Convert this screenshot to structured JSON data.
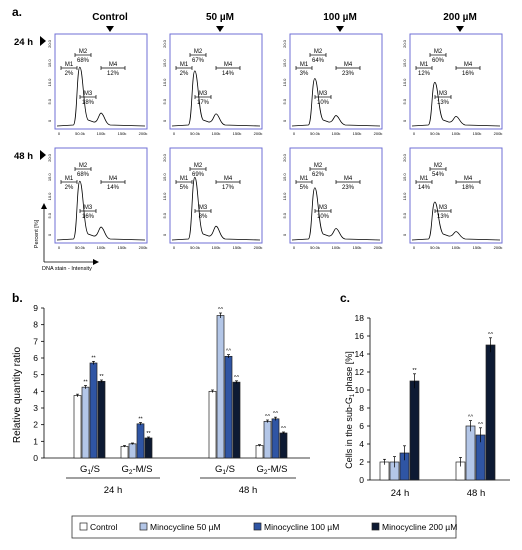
{
  "panel_a": {
    "label": "a.",
    "columns": [
      "Control",
      "50 µM",
      "100 µM",
      "200 µM"
    ],
    "rows": [
      "24 h",
      "48 h"
    ],
    "x_ticks": [
      "0",
      "50.0k",
      "100k",
      "150k",
      "200k"
    ],
    "y_ticks": [
      "0",
      "5.0",
      "10.0",
      "15.0",
      "20.0"
    ],
    "ylabel": "Percent [%]",
    "xlabel": "DNA stain - Intensity",
    "markers": [
      "M1",
      "M2",
      "M3",
      "M4"
    ],
    "histograms": [
      {
        "row": "24 h",
        "column": "Control",
        "M1": "2%",
        "M2": "68%",
        "M3": "18%",
        "M4": "12%"
      },
      {
        "row": "24 h",
        "column": "50 µM",
        "M1": "2%",
        "M2": "67%",
        "M3": "17%",
        "M4": "14%"
      },
      {
        "row": "24 h",
        "column": "100 µM",
        "M1": "3%",
        "M2": "64%",
        "M3": "10%",
        "M4": "23%"
      },
      {
        "row": "24 h",
        "column": "200 µM",
        "M1": "12%",
        "M2": "60%",
        "M3": "13%",
        "M4": "16%"
      },
      {
        "row": "48 h",
        "column": "Control",
        "M1": "2%",
        "M2": "68%",
        "M3": "16%",
        "M4": "14%"
      },
      {
        "row": "48 h",
        "column": "50 µM",
        "M1": "5%",
        "M2": "69%",
        "M3": "8%",
        "M4": "17%"
      },
      {
        "row": "48 h",
        "column": "100 µM",
        "M1": "5%",
        "M2": "62%",
        "M3": "10%",
        "M4": "23%"
      },
      {
        "row": "48 h",
        "column": "200 µM",
        "M1": "14%",
        "M2": "54%",
        "M3": "13%",
        "M4": "18%"
      }
    ]
  },
  "legend": {
    "entries": [
      "Control",
      "Minocycline 50 µM",
      "Minocycline 100 µM",
      "Minocycline 200 µM"
    ],
    "colors": [
      "#ffffff",
      "#b3c6e7",
      "#2f55a4",
      "#0d1a33"
    ]
  },
  "chart_data": [
    {
      "type": "bar",
      "panel": "b.",
      "ylabel": "Relative quantity ratio",
      "ylim": [
        0,
        9
      ],
      "yticks": [
        "0",
        "1",
        "2",
        "3",
        "4",
        "5",
        "6",
        "7",
        "8",
        "9"
      ],
      "groups": [
        "24 h",
        "48 h"
      ],
      "categories": [
        "G1/S",
        "G2-M/S",
        "G1/S",
        "G2-M/S"
      ],
      "category_labels": [
        {
          "main": "G",
          "sub": "1",
          "rest": "/S"
        },
        {
          "main": "G",
          "sub": "2",
          "rest": "-M/S"
        },
        {
          "main": "G",
          "sub": "1",
          "rest": "/S"
        },
        {
          "main": "G",
          "sub": "2",
          "rest": "-M/S"
        }
      ],
      "series": [
        {
          "name": "Control",
          "values": [
            3.75,
            0.7,
            4.0,
            0.75
          ],
          "errors": [
            0.08,
            0.05,
            0.08,
            0.05
          ],
          "marks": [
            "",
            "",
            "",
            ""
          ]
        },
        {
          "name": "Minocycline 50 µM",
          "values": [
            4.25,
            0.85,
            8.55,
            2.2
          ],
          "errors": [
            0.1,
            0.05,
            0.15,
            0.08
          ],
          "marks": [
            "**",
            "",
            "^^",
            "^^"
          ]
        },
        {
          "name": "Minocycline 100 µM",
          "values": [
            5.7,
            2.05,
            6.1,
            2.35
          ],
          "errors": [
            0.1,
            0.08,
            0.1,
            0.1
          ],
          "marks": [
            "**",
            "**",
            "^^",
            "^^"
          ]
        },
        {
          "name": "Minocycline 200 µM",
          "values": [
            4.6,
            1.2,
            4.55,
            1.5
          ],
          "errors": [
            0.08,
            0.06,
            0.08,
            0.06
          ],
          "marks": [
            "**",
            "**",
            "^^",
            "^^"
          ]
        }
      ]
    },
    {
      "type": "bar",
      "panel": "c.",
      "ylabel": "Cells in the sub-G1 phase [%]",
      "ylim": [
        0,
        18
      ],
      "yticks": [
        "0",
        "2",
        "4",
        "6",
        "8",
        "10",
        "12",
        "14",
        "16",
        "18"
      ],
      "categories": [
        "24 h",
        "48 h"
      ],
      "series": [
        {
          "name": "Control",
          "values": [
            2.0,
            2.0
          ],
          "errors": [
            0.3,
            0.5
          ],
          "marks": [
            "",
            ""
          ]
        },
        {
          "name": "Minocycline 50 µM",
          "values": [
            2.0,
            6.0
          ],
          "errors": [
            0.6,
            0.6
          ],
          "marks": [
            "",
            "^^"
          ]
        },
        {
          "name": "Minocycline 100 µM",
          "values": [
            3.0,
            5.0
          ],
          "errors": [
            0.8,
            0.8
          ],
          "marks": [
            "",
            "^^"
          ]
        },
        {
          "name": "Minocycline 200 µM",
          "values": [
            11.0,
            15.0
          ],
          "errors": [
            0.8,
            0.8
          ],
          "marks": [
            "**",
            "^^"
          ]
        }
      ]
    }
  ]
}
